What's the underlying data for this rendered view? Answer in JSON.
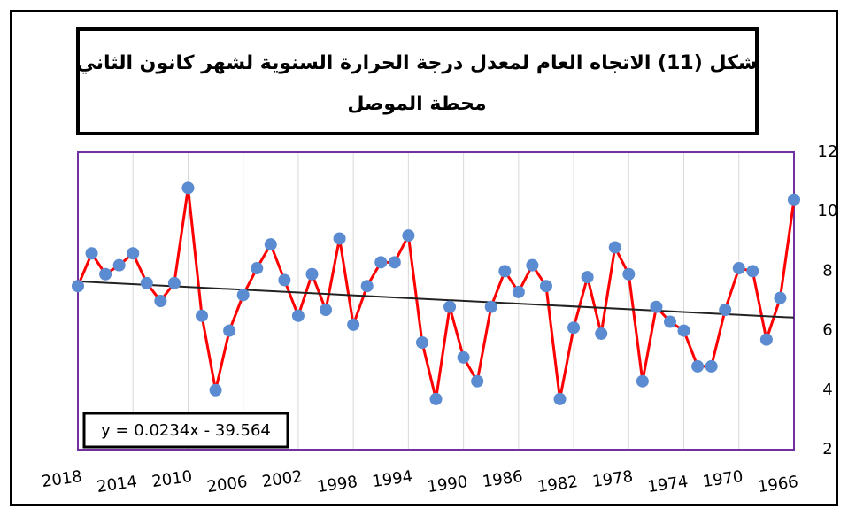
{
  "chart_data": {
    "type": "line",
    "title": "شكل (11) الاتجاه العام لمعدل درجة الحرارة السنوية لشهر كانون الثاني",
    "subtitle": "محطة الموصل",
    "x": [
      2018,
      2017,
      2016,
      2015,
      2014,
      2013,
      2012,
      2011,
      2010,
      2009,
      2008,
      2007,
      2006,
      2005,
      2004,
      2003,
      2002,
      2001,
      2000,
      1999,
      1998,
      1997,
      1996,
      1995,
      1994,
      1993,
      1992,
      1991,
      1990,
      1989,
      1988,
      1987,
      1986,
      1985,
      1984,
      1983,
      1982,
      1981,
      1980,
      1979,
      1978,
      1977,
      1976,
      1975,
      1974,
      1973,
      1972,
      1971,
      1970,
      1969,
      1968,
      1967,
      1966
    ],
    "series": [
      {
        "color": "#ff0000",
        "marker_color": "#5b8bd0",
        "values": [
          7.5,
          8.6,
          7.9,
          8.2,
          8.6,
          7.6,
          7.0,
          7.6,
          10.8,
          6.5,
          4.0,
          6.0,
          7.2,
          8.1,
          8.9,
          7.7,
          6.5,
          7.9,
          6.7,
          9.1,
          6.2,
          7.5,
          8.3,
          8.3,
          9.2,
          5.6,
          3.7,
          6.8,
          5.1,
          4.3,
          6.8,
          8.0,
          7.3,
          8.2,
          7.5,
          3.7,
          6.1,
          7.8,
          5.9,
          8.8,
          7.9,
          4.3,
          6.8,
          6.3,
          6.0,
          4.8,
          4.8,
          6.7,
          8.1,
          8.0,
          5.7,
          7.1,
          10.4
        ]
      }
    ],
    "trendline": {
      "slope": 0.0234,
      "intercept": -39.564,
      "label": "y = 0.0234x - 39.564",
      "color": "#222222"
    },
    "xlim": [
      2018,
      1966
    ],
    "xticks": [
      2018,
      2014,
      2010,
      2006,
      2002,
      1998,
      1994,
      1990,
      1986,
      1982,
      1978,
      1974,
      1970,
      1966
    ],
    "ylim": [
      2,
      12
    ],
    "yticks": [
      2,
      4,
      6,
      8,
      10,
      12
    ],
    "grid": true,
    "frame_color": "#7030a0"
  }
}
